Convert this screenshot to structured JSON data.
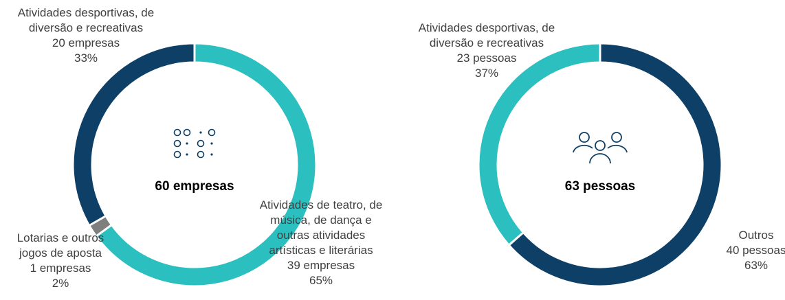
{
  "chart_data": [
    {
      "type": "pie",
      "center_label": "60 empresas",
      "categories": [
        "Atividades de teatro, de música, de dança e outras atividades artísticas e literárias",
        "Lotarias e outros jogos de aposta",
        "Atividades desportivas, de diversão e recreativas"
      ],
      "values": [
        39,
        1,
        20
      ],
      "value_labels": [
        "39 empresas",
        "1 empresas",
        "20 empresas"
      ],
      "percent_labels": [
        "65%",
        "2%",
        "33%"
      ],
      "colors": [
        "#2cbfc0",
        "#7f7f7f",
        "#0e3f66"
      ]
    },
    {
      "type": "pie",
      "center_label": "63 pessoas",
      "categories": [
        "Outros",
        "Atividades desportivas, de diversão e recreativas"
      ],
      "values": [
        40,
        23
      ],
      "value_labels": [
        "40 pessoas",
        "23 pessoas"
      ],
      "percent_labels": [
        "63%",
        "37%"
      ],
      "colors": [
        "#0e3f66",
        "#2cbfc0"
      ]
    }
  ]
}
